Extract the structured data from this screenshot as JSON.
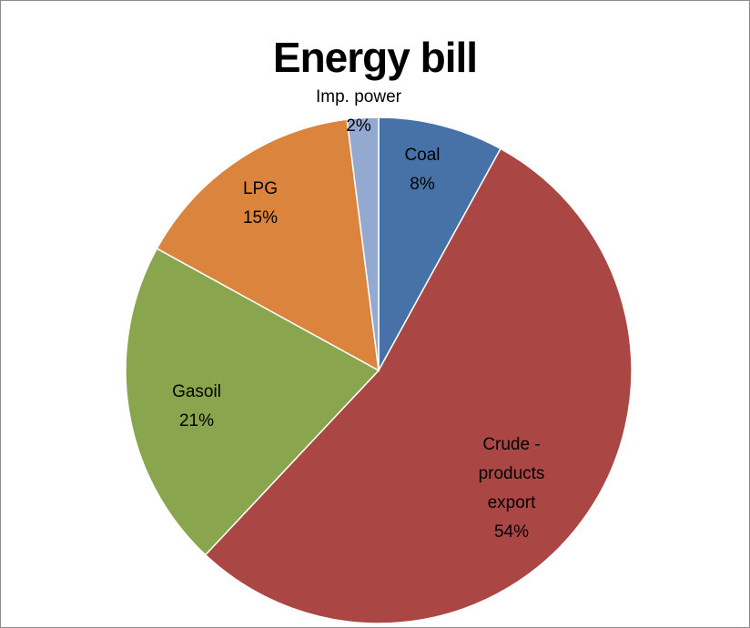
{
  "chart_data": {
    "type": "pie",
    "title": "Energy bill",
    "slices": [
      {
        "label": [
          "Coal"
        ],
        "percent_label": "8%",
        "value": 8,
        "color": "#4672a8"
      },
      {
        "label": [
          "Crude -",
          "products",
          "export"
        ],
        "percent_label": "54%",
        "value": 54,
        "color": "#aa4744"
      },
      {
        "label": [
          "Gasoil"
        ],
        "percent_label": "21%",
        "value": 21,
        "color": "#89a54e"
      },
      {
        "label": [
          "LPG"
        ],
        "percent_label": "15%",
        "value": 15,
        "color": "#db843d"
      },
      {
        "label": [
          "Imp. power"
        ],
        "percent_label": "2%",
        "value": 2,
        "color": "#93a9d0"
      }
    ],
    "start_angle_deg": 0,
    "direction": "clockwise",
    "legend": "none",
    "grid": false
  }
}
